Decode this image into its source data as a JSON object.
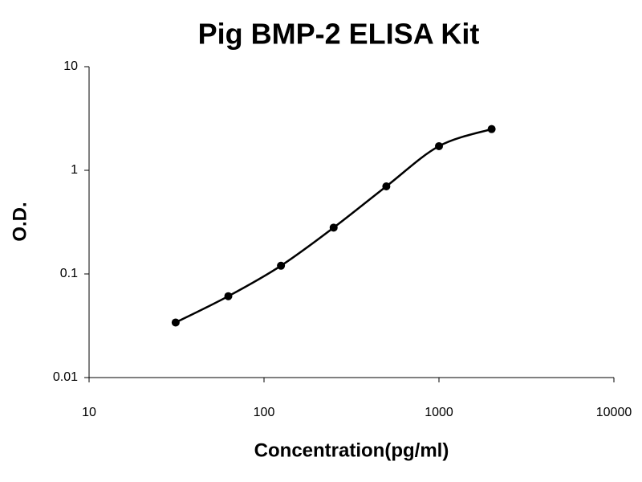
{
  "chart_data": {
    "type": "line",
    "title": "Pig BMP-2 ELISA Kit",
    "x_label": "Concentration(pg/ml)",
    "y_label": "O.D.",
    "x": [
      31.25,
      62.5,
      125,
      250,
      500,
      1000,
      2000
    ],
    "values": [
      0.034,
      0.061,
      0.12,
      0.28,
      0.7,
      1.71,
      2.5
    ],
    "color": "#000000",
    "smooth": true,
    "markers": true,
    "xlog": true,
    "ylog": true,
    "xlim": [
      10,
      10000
    ],
    "xticks": [
      10,
      100,
      1000,
      10000
    ],
    "ylim": [
      0.01,
      10
    ],
    "yticks": [
      0.01,
      0.1,
      1,
      10
    ]
  }
}
